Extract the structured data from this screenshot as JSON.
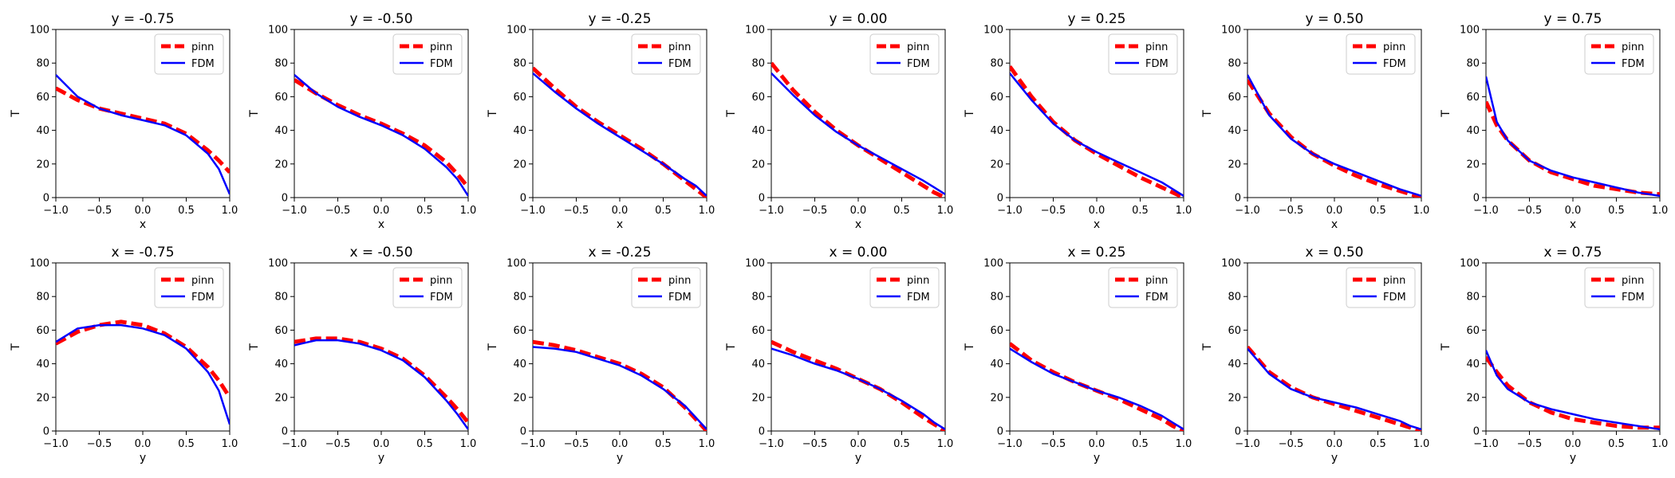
{
  "colors": {
    "pinn": "#ff0000",
    "fdm": "#0000ff"
  },
  "legend": {
    "location": "upper right",
    "entries": [
      "pinn",
      "FDM"
    ]
  },
  "chart_data": [
    {
      "type": "line",
      "title": "y = -0.75",
      "xlabel": "x",
      "ylabel": "T",
      "xlim": [
        -1,
        1
      ],
      "ylim": [
        0,
        100
      ],
      "xticks": [
        "−1.0",
        "−0.5",
        "0.0",
        "0.5",
        "1.0"
      ],
      "yticks": [
        "0",
        "20",
        "40",
        "60",
        "80",
        "100"
      ],
      "x": [
        -1.0,
        -0.75,
        -0.5,
        -0.25,
        0.0,
        0.25,
        0.5,
        0.75,
        0.875,
        1.0
      ],
      "series": [
        {
          "name": "pinn",
          "values": [
            65,
            58,
            53,
            50,
            47,
            44,
            38,
            28,
            22,
            15
          ]
        },
        {
          "name": "FDM",
          "values": [
            73,
            60,
            53,
            49,
            46,
            43,
            37,
            26,
            17,
            2
          ]
        }
      ]
    },
    {
      "type": "line",
      "title": "y = -0.50",
      "xlabel": "x",
      "ylabel": "T",
      "xlim": [
        -1,
        1
      ],
      "ylim": [
        0,
        100
      ],
      "xticks": [
        "−1.0",
        "−0.5",
        "0.0",
        "0.5",
        "1.0"
      ],
      "yticks": [
        "0",
        "20",
        "40",
        "60",
        "80",
        "100"
      ],
      "x": [
        -1.0,
        -0.75,
        -0.5,
        -0.25,
        0.0,
        0.25,
        0.5,
        0.75,
        0.875,
        1.0
      ],
      "series": [
        {
          "name": "pinn",
          "values": [
            70,
            62,
            55,
            49,
            44,
            38,
            31,
            21,
            14,
            6
          ]
        },
        {
          "name": "FDM",
          "values": [
            73,
            62,
            54,
            48,
            43,
            37,
            29,
            18,
            11,
            1
          ]
        }
      ]
    },
    {
      "type": "line",
      "title": "y = -0.25",
      "xlabel": "x",
      "ylabel": "T",
      "xlim": [
        -1,
        1
      ],
      "ylim": [
        0,
        100
      ],
      "xticks": [
        "−1.0",
        "−0.5",
        "0.0",
        "0.5",
        "1.0"
      ],
      "yticks": [
        "0",
        "20",
        "40",
        "60",
        "80",
        "100"
      ],
      "x": [
        -1.0,
        -0.75,
        -0.5,
        -0.25,
        0.0,
        0.25,
        0.5,
        0.75,
        0.875,
        1.0
      ],
      "series": [
        {
          "name": "pinn",
          "values": [
            77,
            65,
            54,
            45,
            37,
            29,
            20,
            10,
            5,
            0
          ]
        },
        {
          "name": "FDM",
          "values": [
            74,
            63,
            53,
            44,
            36,
            28,
            20,
            11,
            7,
            1
          ]
        }
      ]
    },
    {
      "type": "line",
      "title": "y = 0.00",
      "xlabel": "x",
      "ylabel": "T",
      "xlim": [
        -1,
        1
      ],
      "ylim": [
        0,
        100
      ],
      "xticks": [
        "−1.0",
        "−0.5",
        "0.0",
        "0.5",
        "1.0"
      ],
      "yticks": [
        "0",
        "20",
        "40",
        "60",
        "80",
        "100"
      ],
      "x": [
        -1.0,
        -0.75,
        -0.5,
        -0.25,
        0.0,
        0.25,
        0.5,
        0.75,
        0.875,
        1.0
      ],
      "series": [
        {
          "name": "pinn",
          "values": [
            80,
            64,
            51,
            40,
            31,
            23,
            15,
            7,
            3,
            0
          ]
        },
        {
          "name": "FDM",
          "values": [
            74,
            61,
            49,
            39,
            31,
            24,
            17,
            10,
            6,
            2
          ]
        }
      ]
    },
    {
      "type": "line",
      "title": "y = 0.25",
      "xlabel": "x",
      "ylabel": "T",
      "xlim": [
        -1,
        1
      ],
      "ylim": [
        0,
        100
      ],
      "xticks": [
        "−1.0",
        "−0.5",
        "0.0",
        "0.5",
        "1.0"
      ],
      "yticks": [
        "0",
        "20",
        "40",
        "60",
        "80",
        "100"
      ],
      "x": [
        -1.0,
        -0.75,
        -0.5,
        -0.25,
        0.0,
        0.25,
        0.5,
        0.75,
        0.875,
        1.0
      ],
      "series": [
        {
          "name": "pinn",
          "values": [
            78,
            60,
            45,
            34,
            26,
            19,
            12,
            6,
            3,
            0
          ]
        },
        {
          "name": "FDM",
          "values": [
            74,
            58,
            44,
            34,
            27,
            21,
            15,
            9,
            5,
            1
          ]
        }
      ]
    },
    {
      "type": "line",
      "title": "y = 0.50",
      "xlabel": "x",
      "ylabel": "T",
      "xlim": [
        -1,
        1
      ],
      "ylim": [
        0,
        100
      ],
      "xticks": [
        "−1.0",
        "−0.5",
        "0.0",
        "0.5",
        "1.0"
      ],
      "yticks": [
        "0",
        "20",
        "40",
        "60",
        "80",
        "100"
      ],
      "x": [
        -1.0,
        -0.75,
        -0.5,
        -0.25,
        0.0,
        0.25,
        0.5,
        0.75,
        0.875,
        1.0
      ],
      "series": [
        {
          "name": "pinn",
          "values": [
            70,
            50,
            36,
            26,
            19,
            13,
            8,
            4,
            2,
            0
          ]
        },
        {
          "name": "FDM",
          "values": [
            73,
            49,
            35,
            26,
            20,
            15,
            10,
            5,
            3,
            1
          ]
        }
      ]
    },
    {
      "type": "line",
      "title": "y = 0.75",
      "xlabel": "x",
      "ylabel": "T",
      "xlim": [
        -1,
        1
      ],
      "ylim": [
        0,
        100
      ],
      "xticks": [
        "−1.0",
        "−0.5",
        "0.0",
        "0.5",
        "1.0"
      ],
      "yticks": [
        "0",
        "20",
        "40",
        "60",
        "80",
        "100"
      ],
      "x": [
        -1.0,
        -0.875,
        -0.75,
        -0.5,
        -0.25,
        0.0,
        0.25,
        0.5,
        0.75,
        1.0
      ],
      "series": [
        {
          "name": "pinn",
          "values": [
            57,
            43,
            34,
            22,
            15,
            11,
            7,
            5,
            3,
            2
          ]
        },
        {
          "name": "FDM",
          "values": [
            72,
            45,
            34,
            22,
            16,
            12,
            9,
            6,
            3,
            1
          ]
        }
      ]
    },
    {
      "type": "line",
      "title": "x = -0.75",
      "xlabel": "y",
      "ylabel": "T",
      "xlim": [
        -1,
        1
      ],
      "ylim": [
        0,
        100
      ],
      "xticks": [
        "−1.0",
        "−0.5",
        "0.0",
        "0.5",
        "1.0"
      ],
      "yticks": [
        "0",
        "20",
        "40",
        "60",
        "80",
        "100"
      ],
      "x": [
        -1.0,
        -0.75,
        -0.5,
        -0.25,
        0.0,
        0.25,
        0.5,
        0.75,
        0.875,
        1.0
      ],
      "series": [
        {
          "name": "pinn",
          "values": [
            52,
            59,
            63,
            65,
            63,
            58,
            50,
            38,
            30,
            20
          ]
        },
        {
          "name": "FDM",
          "values": [
            53,
            61,
            63,
            63,
            61,
            57,
            49,
            35,
            24,
            4
          ]
        }
      ]
    },
    {
      "type": "line",
      "title": "x = -0.50",
      "xlabel": "y",
      "ylabel": "T",
      "xlim": [
        -1,
        1
      ],
      "ylim": [
        0,
        100
      ],
      "xticks": [
        "−1.0",
        "−0.5",
        "0.0",
        "0.5",
        "1.0"
      ],
      "yticks": [
        "0",
        "20",
        "40",
        "60",
        "80",
        "100"
      ],
      "x": [
        -1.0,
        -0.75,
        -0.5,
        -0.25,
        0.0,
        0.25,
        0.5,
        0.75,
        0.875,
        1.0
      ],
      "series": [
        {
          "name": "pinn",
          "values": [
            53,
            55,
            55,
            53,
            49,
            43,
            33,
            20,
            13,
            5
          ]
        },
        {
          "name": "FDM",
          "values": [
            51,
            54,
            54,
            52,
            48,
            42,
            32,
            18,
            10,
            1
          ]
        }
      ]
    },
    {
      "type": "line",
      "title": "x = -0.25",
      "xlabel": "y",
      "ylabel": "T",
      "xlim": [
        -1,
        1
      ],
      "ylim": [
        0,
        100
      ],
      "xticks": [
        "−1.0",
        "−0.5",
        "0.0",
        "0.5",
        "1.0"
      ],
      "yticks": [
        "0",
        "20",
        "40",
        "60",
        "80",
        "100"
      ],
      "x": [
        -1.0,
        -0.75,
        -0.5,
        -0.25,
        0.0,
        0.25,
        0.5,
        0.75,
        0.875,
        1.0
      ],
      "series": [
        {
          "name": "pinn",
          "values": [
            53,
            51,
            48,
            44,
            40,
            34,
            26,
            14,
            7,
            0
          ]
        },
        {
          "name": "FDM",
          "values": [
            50,
            49,
            47,
            43,
            39,
            33,
            25,
            15,
            8,
            1
          ]
        }
      ]
    },
    {
      "type": "line",
      "title": "x = 0.00",
      "xlabel": "y",
      "ylabel": "T",
      "xlim": [
        -1,
        1
      ],
      "ylim": [
        0,
        100
      ],
      "xticks": [
        "−1.0",
        "−0.5",
        "0.0",
        "0.5",
        "1.0"
      ],
      "yticks": [
        "0",
        "20",
        "40",
        "60",
        "80",
        "100"
      ],
      "x": [
        -1.0,
        -0.75,
        -0.5,
        -0.25,
        0.0,
        0.25,
        0.5,
        0.75,
        0.875,
        1.0
      ],
      "series": [
        {
          "name": "pinn",
          "values": [
            53,
            47,
            42,
            37,
            31,
            25,
            17,
            8,
            4,
            0
          ]
        },
        {
          "name": "FDM",
          "values": [
            49,
            45,
            40,
            36,
            31,
            25,
            18,
            10,
            5,
            1
          ]
        }
      ]
    },
    {
      "type": "line",
      "title": "x = 0.25",
      "xlabel": "y",
      "ylabel": "T",
      "xlim": [
        -1,
        1
      ],
      "ylim": [
        0,
        100
      ],
      "xticks": [
        "−1.0",
        "−0.5",
        "0.0",
        "0.5",
        "1.0"
      ],
      "yticks": [
        "0",
        "20",
        "40",
        "60",
        "80",
        "100"
      ],
      "x": [
        -1.0,
        -0.75,
        -0.5,
        -0.25,
        0.0,
        0.25,
        0.5,
        0.75,
        0.875,
        1.0
      ],
      "series": [
        {
          "name": "pinn",
          "values": [
            52,
            42,
            35,
            29,
            24,
            19,
            13,
            7,
            3,
            0
          ]
        },
        {
          "name": "FDM",
          "values": [
            49,
            41,
            34,
            29,
            24,
            20,
            15,
            9,
            5,
            1
          ]
        }
      ]
    },
    {
      "type": "line",
      "title": "x = 0.50",
      "xlabel": "y",
      "ylabel": "T",
      "xlim": [
        -1,
        1
      ],
      "ylim": [
        0,
        100
      ],
      "xticks": [
        "−1.0",
        "−0.5",
        "0.0",
        "0.5",
        "1.0"
      ],
      "yticks": [
        "0",
        "20",
        "40",
        "60",
        "80",
        "100"
      ],
      "x": [
        -1.0,
        -0.75,
        -0.5,
        -0.25,
        0.0,
        0.25,
        0.5,
        0.75,
        0.875,
        1.0
      ],
      "series": [
        {
          "name": "pinn",
          "values": [
            50,
            35,
            26,
            20,
            16,
            12,
            8,
            4,
            2,
            0
          ]
        },
        {
          "name": "FDM",
          "values": [
            49,
            34,
            25,
            20,
            17,
            14,
            10,
            6,
            3,
            1
          ]
        }
      ]
    },
    {
      "type": "line",
      "title": "x = 0.75",
      "xlabel": "y",
      "ylabel": "T",
      "xlim": [
        -1,
        1
      ],
      "ylim": [
        0,
        100
      ],
      "xticks": [
        "−1.0",
        "−0.5",
        "0.0",
        "0.5",
        "1.0"
      ],
      "yticks": [
        "0",
        "20",
        "40",
        "60",
        "80",
        "100"
      ],
      "x": [
        -1.0,
        -0.875,
        -0.75,
        -0.5,
        -0.25,
        0.0,
        0.25,
        0.5,
        0.75,
        1.0
      ],
      "series": [
        {
          "name": "pinn",
          "values": [
            44,
            35,
            27,
            17,
            11,
            7,
            5,
            3,
            2,
            2
          ]
        },
        {
          "name": "FDM",
          "values": [
            48,
            33,
            25,
            17,
            13,
            10,
            7,
            5,
            3,
            1
          ]
        }
      ]
    }
  ]
}
